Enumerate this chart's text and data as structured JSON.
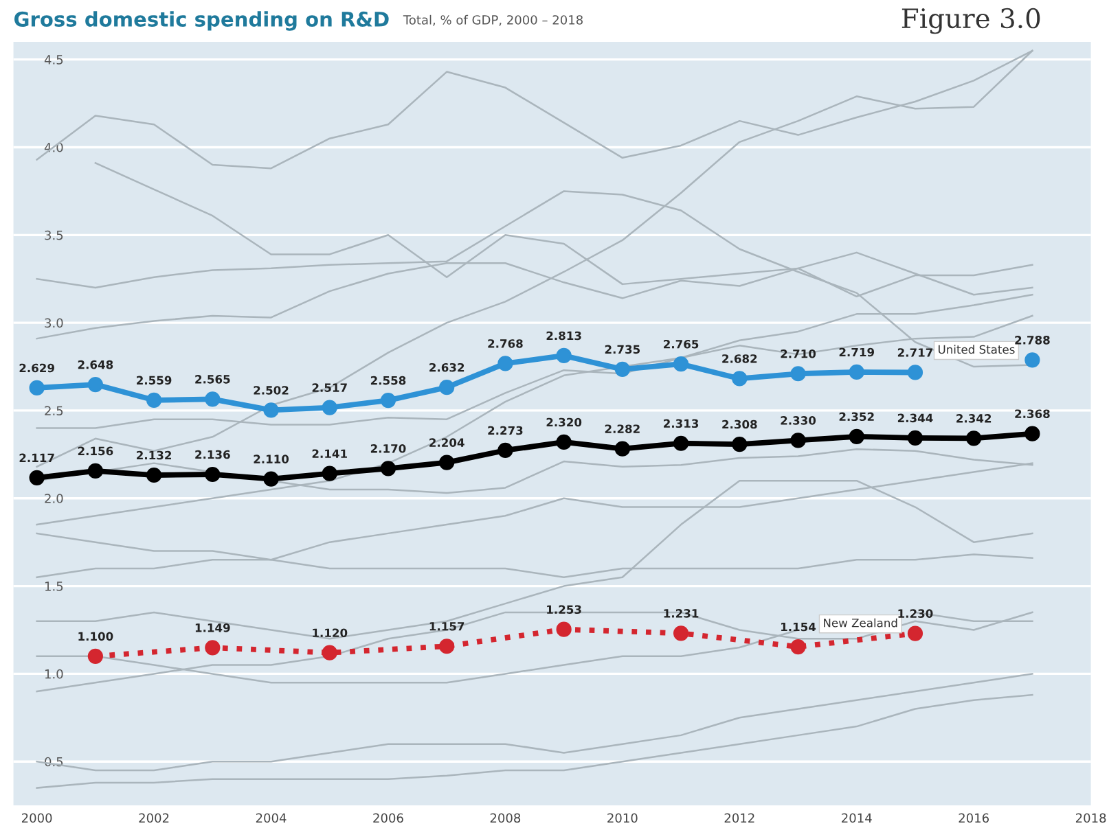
{
  "chart_data": {
    "type": "line",
    "title": "Gross domestic spending on R&D",
    "subtitle": "Total, % of GDP, 2000 – 2018",
    "annotations": [
      "Figure 3.0"
    ],
    "xlim": [
      1999.6,
      2018
    ],
    "xticks": [
      2000,
      2002,
      2004,
      2006,
      2008,
      2010,
      2012,
      2014,
      2016,
      2018
    ],
    "ylim": [
      0.25,
      4.6
    ],
    "yticks": [
      0.5,
      {
        "value": 1,
        "label": "1.0"
      },
      1.5,
      {
        "value": 2,
        "label": "2.0"
      },
      2.5,
      {
        "value": 3,
        "label": "3.0"
      },
      3.5,
      {
        "value": 4,
        "label": "4.0"
      },
      4.5
    ],
    "grid": "y",
    "legend": false,
    "x": [
      2000,
      2001,
      2002,
      2003,
      2004,
      2005,
      2006,
      2007,
      2008,
      2009,
      2010,
      2011,
      2012,
      2013,
      2014,
      2015,
      2016,
      2017
    ],
    "series": [
      {
        "color": "#aab5bc",
        "marker": "none",
        "values": [
          3.93,
          4.18,
          4.13,
          3.9,
          3.88,
          4.05,
          4.13,
          4.43,
          4.34,
          4.14,
          3.94,
          4.01,
          4.15,
          4.07,
          4.17,
          4.26,
          4.38,
          4.55
        ]
      },
      {
        "color": "#aab5bc",
        "marker": "none",
        "values": [
          2.18,
          2.34,
          2.27,
          2.35,
          2.53,
          2.63,
          2.83,
          3.0,
          3.12,
          3.29,
          3.47,
          3.74,
          4.03,
          4.15,
          4.29,
          4.22,
          4.23,
          4.55
        ]
      },
      {
        "color": "#aab5bc",
        "marker": "none",
        "values": [
          3.25,
          3.2,
          3.26,
          3.3,
          3.31,
          3.33,
          3.34,
          3.35,
          3.55,
          3.75,
          3.73,
          3.64,
          3.42,
          3.29,
          3.17,
          2.89,
          2.75,
          2.76
        ]
      },
      {
        "color": "#aab5bc",
        "marker": "none",
        "values": [
          null,
          3.91,
          3.76,
          3.61,
          3.39,
          3.39,
          3.5,
          3.26,
          3.5,
          3.45,
          3.22,
          3.25,
          3.28,
          3.31,
          3.15,
          3.27,
          3.27,
          3.33
        ]
      },
      {
        "color": "#aab5bc",
        "marker": "none",
        "values": [
          2.91,
          2.97,
          3.01,
          3.04,
          3.03,
          3.18,
          3.28,
          3.34,
          3.34,
          3.23,
          3.14,
          3.24,
          3.21,
          3.31,
          3.4,
          3.28,
          3.16,
          3.2
        ]
      },
      {
        "color": "#aab5bc",
        "marker": "none",
        "values": [
          1.85,
          1.9,
          1.95,
          2.0,
          2.05,
          2.1,
          2.2,
          2.35,
          2.55,
          2.7,
          2.75,
          2.8,
          2.9,
          2.95,
          3.05,
          3.05,
          3.1,
          3.16
        ]
      },
      {
        "color": "#aab5bc",
        "marker": "none",
        "values": [
          2.4,
          2.4,
          2.45,
          2.45,
          2.42,
          2.42,
          2.46,
          2.45,
          2.6,
          2.73,
          2.71,
          2.8,
          2.87,
          2.82,
          2.87,
          2.91,
          2.92,
          3.04
        ]
      },
      {
        "color": "#aab5bc",
        "marker": "none",
        "values": [
          2.1,
          2.15,
          2.2,
          2.15,
          2.1,
          2.05,
          2.05,
          2.03,
          2.06,
          2.21,
          2.18,
          2.19,
          2.23,
          2.24,
          2.28,
          2.27,
          2.22,
          2.19
        ]
      },
      {
        "color": "#aab5bc",
        "marker": "none",
        "values": [
          1.8,
          1.75,
          1.7,
          1.7,
          1.65,
          1.6,
          1.6,
          1.6,
          1.6,
          1.55,
          1.6,
          1.6,
          1.6,
          1.6,
          1.65,
          1.65,
          1.68,
          1.66
        ]
      },
      {
        "color": "#aab5bc",
        "marker": "none",
        "values": [
          1.3,
          1.3,
          1.35,
          1.3,
          1.25,
          1.2,
          1.25,
          1.3,
          1.4,
          1.5,
          1.55,
          1.85,
          2.1,
          2.1,
          2.1,
          1.95,
          1.75,
          1.8
        ]
      },
      {
        "color": "#aab5bc",
        "marker": "none",
        "values": [
          0.9,
          0.95,
          1.0,
          1.05,
          1.05,
          1.1,
          1.2,
          1.25,
          1.35,
          1.35,
          1.35,
          1.35,
          1.25,
          1.2,
          1.2,
          1.3,
          1.25,
          1.35
        ]
      },
      {
        "color": "#aab5bc",
        "marker": "none",
        "values": [
          0.5,
          0.45,
          0.45,
          0.5,
          0.5,
          0.55,
          0.6,
          0.6,
          0.6,
          0.55,
          0.6,
          0.65,
          0.75,
          0.8,
          0.85,
          0.9,
          0.95,
          1.0
        ]
      },
      {
        "color": "#aab5bc",
        "marker": "none",
        "values": [
          0.35,
          0.38,
          0.38,
          0.4,
          0.4,
          0.4,
          0.4,
          0.42,
          0.45,
          0.45,
          0.5,
          0.55,
          0.6,
          0.65,
          0.7,
          0.8,
          0.85,
          0.88
        ]
      },
      {
        "color": "#aab5bc",
        "marker": "none",
        "values": [
          1.55,
          1.6,
          1.6,
          1.65,
          1.65,
          1.75,
          1.8,
          1.85,
          1.9,
          2.0,
          1.95,
          1.95,
          1.95,
          2.0,
          2.05,
          2.1,
          2.15,
          2.2
        ]
      },
      {
        "color": "#aab5bc",
        "marker": "none",
        "values": [
          1.1,
          1.1,
          1.05,
          1.0,
          0.95,
          0.95,
          0.95,
          0.95,
          1.0,
          1.05,
          1.1,
          1.1,
          1.15,
          1.25,
          null,
          1.35,
          1.3,
          1.3
        ]
      },
      {
        "color": "#000000",
        "marker": "circle",
        "values": [
          2.117,
          2.156,
          2.132,
          2.136,
          2.11,
          2.141,
          2.17,
          2.204,
          2.273,
          2.32,
          2.282,
          2.313,
          2.308,
          2.33,
          2.352,
          2.344,
          2.342,
          2.368
        ],
        "value_labels": [
          "2.117",
          "2.156",
          "2.132",
          "2.136",
          "2.110",
          "2.141",
          "2.170",
          "2.204",
          "2.273",
          "2.320",
          "2.282",
          "2.313",
          "2.308",
          "2.330",
          "2.352",
          "2.344",
          "2.342",
          "2.368"
        ]
      },
      {
        "name": "United States",
        "color": "#2e92d6",
        "marker": "circle",
        "values": [
          2.629,
          2.648,
          2.559,
          2.565,
          2.502,
          2.517,
          2.558,
          2.632,
          2.768,
          2.813,
          2.735,
          2.765,
          2.682,
          2.71,
          2.719,
          2.717,
          null,
          2.788
        ],
        "value_labels": [
          "2.629",
          "2.648",
          "2.559",
          "2.565",
          "2.502",
          "2.517",
          "2.558",
          "2.632",
          "2.768",
          "2.813",
          "2.735",
          "2.765",
          "2.682",
          "2.710",
          "2.719",
          "2.717",
          null,
          "2.788"
        ]
      },
      {
        "name": "New Zealand",
        "color": "#d4262f",
        "marker": "circle",
        "line_style": "dotted",
        "x": [
          2001,
          2003,
          2005,
          2007,
          2009,
          2011,
          2013,
          2015
        ],
        "values": [
          1.1,
          1.149,
          1.12,
          1.157,
          1.253,
          1.231,
          1.154,
          1.23
        ],
        "value_labels": [
          "1.100",
          "1.149",
          "1.120",
          "1.157",
          "1.253",
          "1.231",
          "1.154",
          "1.230"
        ]
      }
    ]
  }
}
